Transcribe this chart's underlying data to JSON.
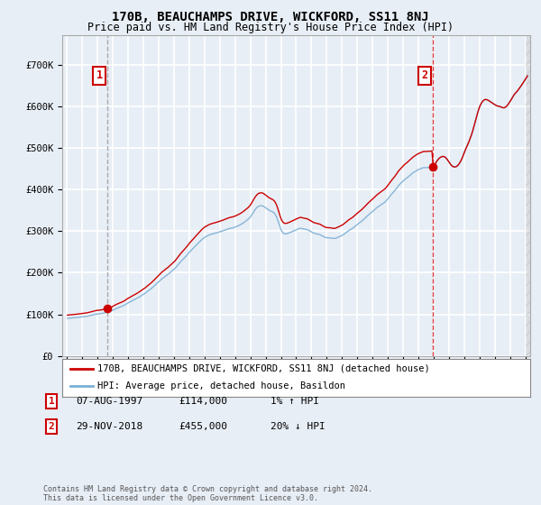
{
  "title": "170B, BEAUCHAMPS DRIVE, WICKFORD, SS11 8NJ",
  "subtitle": "Price paid vs. HM Land Registry's House Price Index (HPI)",
  "background_color": "#e8eef6",
  "plot_bg_color": "#e8eef6",
  "grid_color": "#ffffff",
  "hpi_color": "#7bafd4",
  "price_color": "#cc0000",
  "vline1_color": "#aaaaaa",
  "vline2_color": "#dd4444",
  "marker1_value": 114000,
  "marker2_value": 455000,
  "annotation1": [
    "07-AUG-1997",
    "£114,000",
    "1% ↑ HPI"
  ],
  "annotation2": [
    "29-NOV-2018",
    "£455,000",
    "20% ↓ HPI"
  ],
  "legend1": "170B, BEAUCHAMPS DRIVE, WICKFORD, SS11 8NJ (detached house)",
  "legend2": "HPI: Average price, detached house, Basildon",
  "footer": "Contains HM Land Registry data © Crown copyright and database right 2024.\nThis data is licensed under the Open Government Licence v3.0.",
  "yticks": [
    0,
    100000,
    200000,
    300000,
    400000,
    500000,
    600000,
    700000
  ],
  "ytick_labels": [
    "£0",
    "£100K",
    "£200K",
    "£300K",
    "£400K",
    "£500K",
    "£600K",
    "£700K"
  ],
  "ylim": [
    0,
    770000
  ],
  "xlim_start": 1994.7,
  "xlim_end": 2025.3,
  "xticks": [
    1995,
    1996,
    1997,
    1998,
    1999,
    2000,
    2001,
    2002,
    2003,
    2004,
    2005,
    2006,
    2007,
    2008,
    2009,
    2010,
    2011,
    2012,
    2013,
    2014,
    2015,
    2016,
    2017,
    2018,
    2019,
    2020,
    2021,
    2022,
    2023,
    2024,
    2025
  ],
  "hatch_start": 2025.0,
  "marker1_x": 1997.625,
  "marker2_x": 2018.917
}
